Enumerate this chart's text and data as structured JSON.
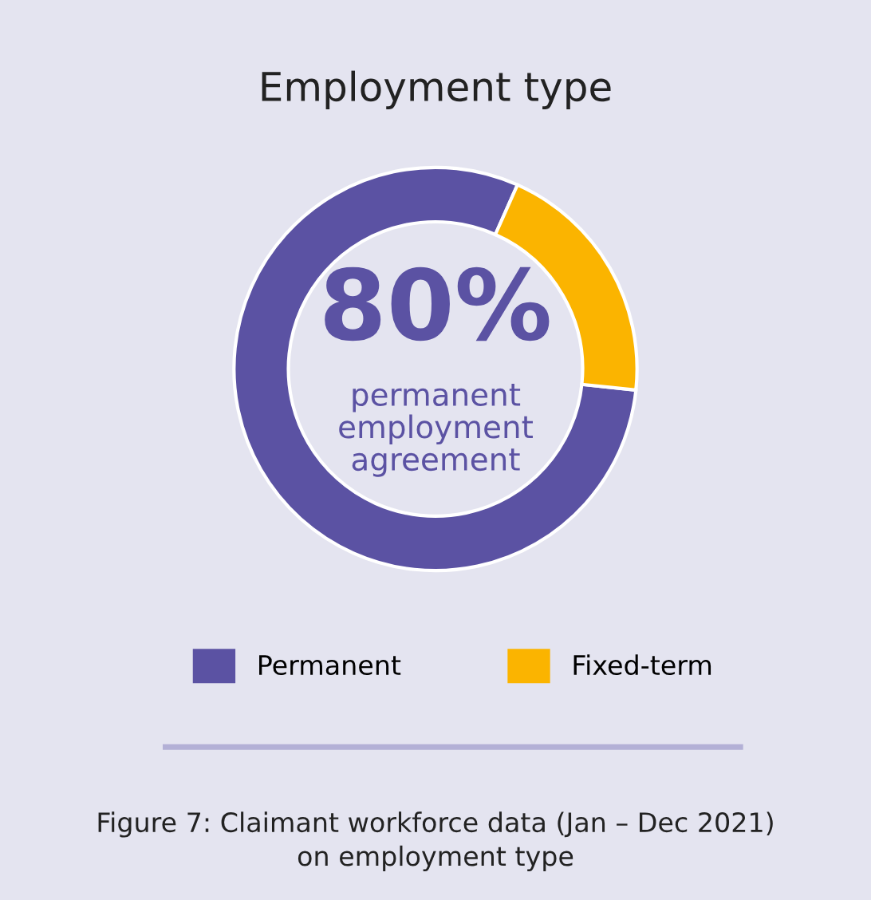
{
  "chart_data": {
    "type": "donut",
    "title": "Employment type",
    "categories": [
      "Permanent",
      "Fixed-term"
    ],
    "values": [
      80,
      20
    ],
    "colors": [
      "#5b52a3",
      "#fbb400"
    ],
    "legend": "bottom",
    "annotations": [
      "80%",
      "permanent\nemployment\nagreement",
      "Figure 7: Claimant workforce data (Jan – Dec 2021)\non employment type"
    ]
  }
}
